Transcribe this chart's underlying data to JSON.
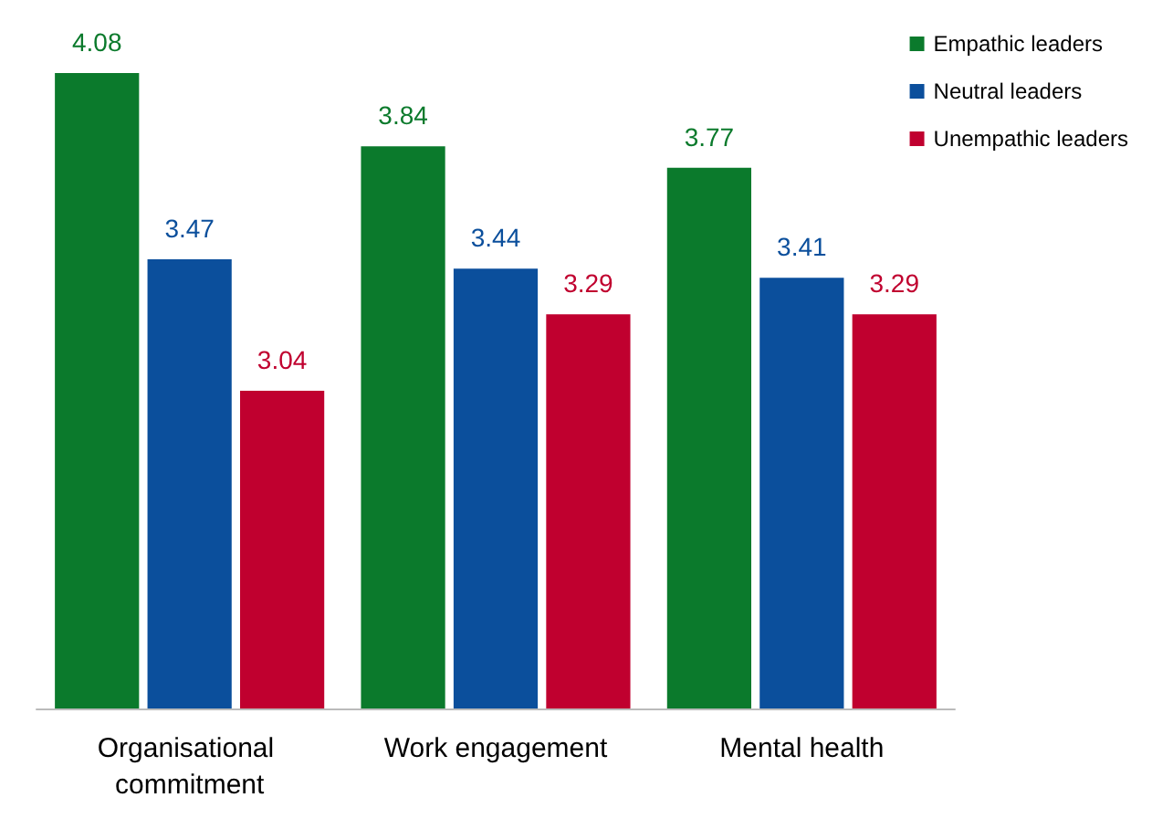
{
  "chart_data": {
    "type": "bar",
    "categories": [
      "Organisational commitment",
      "Work engagement",
      "Mental health"
    ],
    "series": [
      {
        "name": "Empathic leaders",
        "color": "#0b7a2c",
        "values": [
          4.08,
          3.84,
          3.77
        ]
      },
      {
        "name": "Neutral leaders",
        "color": "#0b4f9c",
        "values": [
          3.47,
          3.44,
          3.41
        ]
      },
      {
        "name": "Unempathic leaders",
        "color": "#c0002f",
        "values": [
          3.04,
          3.29,
          3.29
        ]
      }
    ],
    "ylim": [
      2,
      4.08
    ],
    "data_labels": true,
    "legend": "top right",
    "tick_labels": "x"
  }
}
